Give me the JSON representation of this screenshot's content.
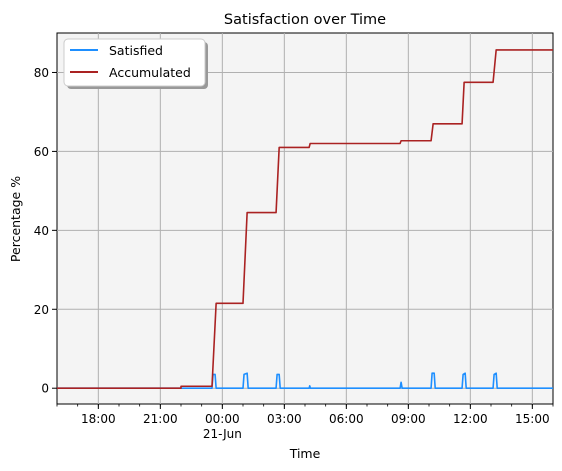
{
  "chart_data": {
    "type": "line",
    "title": "Satisfaction over Time",
    "xlabel": "Time",
    "ylabel": "Percentage %",
    "x_unit": "hours from 16:00 on 20-Jun",
    "xlim": [
      0,
      24
    ],
    "ylim": [
      -4,
      90
    ],
    "grid": true,
    "legend_position": "top-left",
    "x_ticks": [
      {
        "x": 2,
        "label": "18:00",
        "sublabel": ""
      },
      {
        "x": 5,
        "label": "21:00",
        "sublabel": ""
      },
      {
        "x": 8,
        "label": "00:00",
        "sublabel": "21-Jun"
      },
      {
        "x": 11,
        "label": "03:00",
        "sublabel": ""
      },
      {
        "x": 14,
        "label": "06:00",
        "sublabel": ""
      },
      {
        "x": 17,
        "label": "09:00",
        "sublabel": ""
      },
      {
        "x": 20,
        "label": "12:00",
        "sublabel": ""
      },
      {
        "x": 23,
        "label": "15:00",
        "sublabel": ""
      }
    ],
    "y_ticks": [
      0,
      20,
      40,
      60,
      80
    ],
    "series": [
      {
        "name": "Satisfied",
        "color": "#1e8fff",
        "points": [
          [
            0,
            0
          ],
          [
            6,
            0
          ],
          [
            7.5,
            0
          ],
          [
            7.55,
            3.5
          ],
          [
            7.65,
            3.5
          ],
          [
            7.7,
            0
          ],
          [
            9,
            0
          ],
          [
            9.05,
            3.5
          ],
          [
            9.2,
            3.8
          ],
          [
            9.25,
            0
          ],
          [
            10.6,
            0
          ],
          [
            10.65,
            3.5
          ],
          [
            10.75,
            3.5
          ],
          [
            10.8,
            0
          ],
          [
            12.2,
            0
          ],
          [
            12.23,
            0.6
          ],
          [
            12.26,
            0
          ],
          [
            16.6,
            0
          ],
          [
            16.65,
            1.5
          ],
          [
            16.7,
            0
          ],
          [
            18.1,
            0
          ],
          [
            18.15,
            3.8
          ],
          [
            18.25,
            3.8
          ],
          [
            18.3,
            0
          ],
          [
            19.6,
            0
          ],
          [
            19.65,
            3.5
          ],
          [
            19.75,
            3.8
          ],
          [
            19.8,
            0
          ],
          [
            21.1,
            0
          ],
          [
            21.15,
            3.5
          ],
          [
            21.25,
            3.8
          ],
          [
            21.3,
            0
          ],
          [
            24,
            0
          ]
        ]
      },
      {
        "name": "Accumulated",
        "color": "#aa2222",
        "points": [
          [
            0,
            0
          ],
          [
            6,
            0
          ],
          [
            6,
            0.5
          ],
          [
            7.5,
            0.5
          ],
          [
            7.7,
            21.5
          ],
          [
            9.0,
            21.5
          ],
          [
            9.2,
            44.5
          ],
          [
            10.6,
            44.5
          ],
          [
            10.75,
            61
          ],
          [
            12.2,
            61
          ],
          [
            12.25,
            62
          ],
          [
            16.6,
            62
          ],
          [
            16.65,
            62.7
          ],
          [
            18.1,
            62.7
          ],
          [
            18.2,
            67
          ],
          [
            19.6,
            67
          ],
          [
            19.7,
            77.5
          ],
          [
            21.1,
            77.5
          ],
          [
            21.25,
            85.7
          ],
          [
            24,
            85.7
          ]
        ]
      }
    ]
  }
}
